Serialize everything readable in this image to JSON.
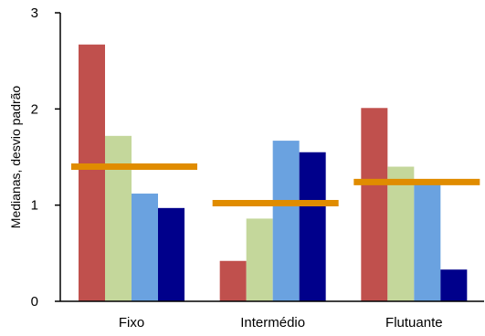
{
  "chart_data": {
    "type": "bar",
    "title": "",
    "xlabel": "",
    "ylabel": "Medianas, desvio padrão",
    "ylim": [
      0,
      3
    ],
    "yticks": [
      "0",
      "1",
      "2",
      "3"
    ],
    "grid": false,
    "categories": [
      "Fixo",
      "Intermédio",
      "Flutuante"
    ],
    "series": [
      {
        "color": "#c0504d",
        "values": [
          2.67,
          0.42,
          2.01
        ]
      },
      {
        "color": "#c4d79b",
        "values": [
          1.72,
          0.86,
          1.4
        ]
      },
      {
        "color": "#6aa2e0",
        "values": [
          1.12,
          1.67,
          1.22
        ]
      },
      {
        "color": "#00008b",
        "values": [
          0.97,
          1.55,
          0.33
        ]
      }
    ],
    "reference_lines": {
      "color": "#e08c00",
      "values": [
        1.4,
        1.02,
        1.24
      ]
    }
  }
}
